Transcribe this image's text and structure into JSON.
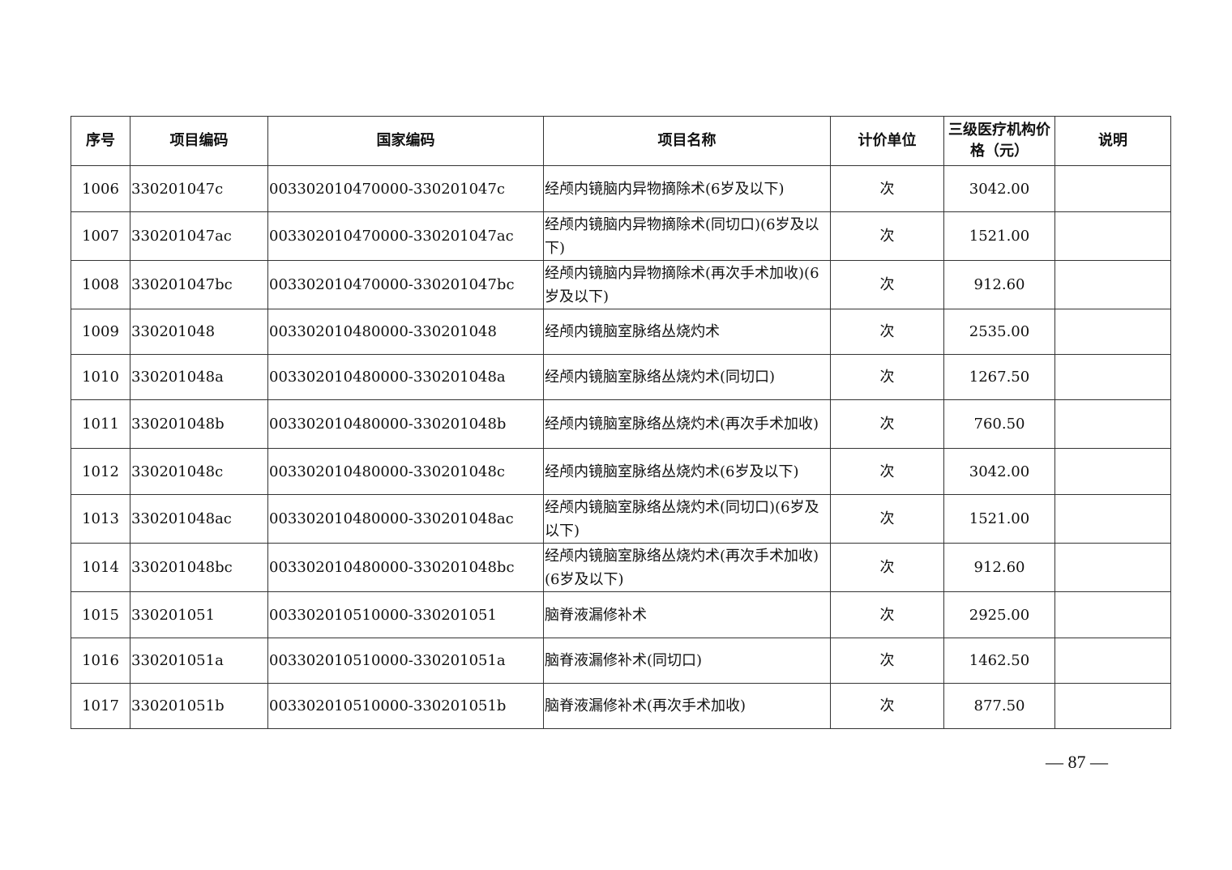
{
  "table": {
    "headers": [
      "序号",
      "项目编码",
      "国家编码",
      "项目名称",
      "计价单位",
      "三级医疗机构价格（元）",
      "说明"
    ],
    "rows": [
      {
        "no": "1006",
        "code": "330201047c",
        "national_code": "003302010470000-330201047c",
        "name": "经颅内镜脑内异物摘除术(6岁及以下)",
        "unit": "次",
        "price": "3042.00",
        "note": ""
      },
      {
        "no": "1007",
        "code": "330201047ac",
        "national_code": "003302010470000-330201047ac",
        "name": "经颅内镜脑内异物摘除术(同切口)(6岁及以下)",
        "unit": "次",
        "price": "1521.00",
        "note": ""
      },
      {
        "no": "1008",
        "code": "330201047bc",
        "national_code": "003302010470000-330201047bc",
        "name": "经颅内镜脑内异物摘除术(再次手术加收)(6岁及以下)",
        "unit": "次",
        "price": "912.60",
        "note": ""
      },
      {
        "no": "1009",
        "code": "330201048",
        "national_code": "003302010480000-330201048",
        "name": "经颅内镜脑室脉络丛烧灼术",
        "unit": "次",
        "price": "2535.00",
        "note": ""
      },
      {
        "no": "1010",
        "code": "330201048a",
        "national_code": "003302010480000-330201048a",
        "name": "经颅内镜脑室脉络丛烧灼术(同切口)",
        "unit": "次",
        "price": "1267.50",
        "note": ""
      },
      {
        "no": "1011",
        "code": "330201048b",
        "national_code": "003302010480000-330201048b",
        "name": "经颅内镜脑室脉络丛烧灼术(再次手术加收)",
        "unit": "次",
        "price": "760.50",
        "note": ""
      },
      {
        "no": "1012",
        "code": "330201048c",
        "national_code": "003302010480000-330201048c",
        "name": "经颅内镜脑室脉络丛烧灼术(6岁及以下)",
        "unit": "次",
        "price": "3042.00",
        "note": ""
      },
      {
        "no": "1013",
        "code": "330201048ac",
        "national_code": "003302010480000-330201048ac",
        "name": "经颅内镜脑室脉络丛烧灼术(同切口)(6岁及以下)",
        "unit": "次",
        "price": "1521.00",
        "note": ""
      },
      {
        "no": "1014",
        "code": "330201048bc",
        "national_code": "003302010480000-330201048bc",
        "name": "经颅内镜脑室脉络丛烧灼术(再次手术加收)(6岁及以下)",
        "unit": "次",
        "price": "912.60",
        "note": ""
      },
      {
        "no": "1015",
        "code": "330201051",
        "national_code": "003302010510000-330201051",
        "name": "脑脊液漏修补术",
        "unit": "次",
        "price": "2925.00",
        "note": ""
      },
      {
        "no": "1016",
        "code": "330201051a",
        "national_code": "003302010510000-330201051a",
        "name": "脑脊液漏修补术(同切口)",
        "unit": "次",
        "price": "1462.50",
        "note": ""
      },
      {
        "no": "1017",
        "code": "330201051b",
        "national_code": "003302010510000-330201051b",
        "name": "脑脊液漏修补术(再次手术加收)",
        "unit": "次",
        "price": "877.50",
        "note": ""
      }
    ]
  },
  "page_number": "— 87 —"
}
